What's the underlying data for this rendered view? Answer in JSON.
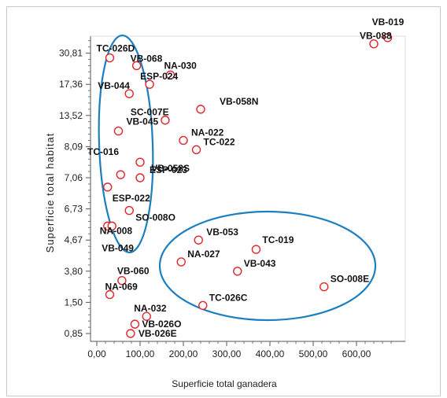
{
  "chart_data": {
    "type": "scatter",
    "title": "",
    "xlabel": "Superficie total ganadera",
    "ylabel": "Superficie total habitat",
    "xlim": [
      0,
      660
    ],
    "x_ticks": [
      "0,00",
      "100,00",
      "200,00",
      "300,00",
      "400,00",
      "500,00",
      "600,00"
    ],
    "x_tick_values": [
      0,
      100,
      200,
      300,
      400,
      500,
      600
    ],
    "y_scale": "ordinal-rank",
    "y_ticks": [
      "0,85",
      "1,50",
      "3,80",
      "4,67",
      "6,73",
      "7,06",
      "8,09",
      "13,52",
      "17,36",
      "30,81"
    ],
    "y_tick_ranks": [
      0,
      1,
      2,
      3,
      4,
      5,
      6,
      7,
      8,
      9
    ],
    "grid": false,
    "marker": "open-circle",
    "marker_color": "#e0262a",
    "ellipse_color": "#1a7fc1",
    "points": [
      {
        "label": "VB-019",
        "x": 672,
        "y_rank": 9.5
      },
      {
        "label": "VB-088",
        "x": 640,
        "y_rank": 9.3
      },
      {
        "label": "TC-026D",
        "x": 30,
        "y_rank": 8.85
      },
      {
        "label": "VB-068",
        "x": 92,
        "y_rank": 8.6
      },
      {
        "label": "NA-030",
        "x": 170,
        "y_rank": 8.3
      },
      {
        "label": "ESP-024",
        "x": 122,
        "y_rank": 8.0
      },
      {
        "label": "VB-044",
        "x": 75,
        "y_rank": 7.7
      },
      {
        "label": "SC-007E",
        "x": 158,
        "y_rank": 6.85
      },
      {
        "label": "VB-058N",
        "x": 240,
        "y_rank": 7.2
      },
      {
        "label": "VB-045",
        "x": 50,
        "y_rank": 6.5
      },
      {
        "label": "NA-022",
        "x": 200,
        "y_rank": 6.2
      },
      {
        "label": "TC-022",
        "x": 230,
        "y_rank": 5.9
      },
      {
        "label": "TC-016",
        "x": 100,
        "y_rank": 5.5
      },
      {
        "label": "VB-058S",
        "x": 55,
        "y_rank": 5.1
      },
      {
        "label": "ESP-023",
        "x": 100,
        "y_rank": 5.0
      },
      {
        "label": "ESP-022",
        "x": 25,
        "y_rank": 4.7
      },
      {
        "label": "SO-008O",
        "x": 75,
        "y_rank": 3.95
      },
      {
        "label": "NA-008",
        "x": 25,
        "y_rank": 3.45
      },
      {
        "label": "VB-049",
        "x": 35,
        "y_rank": 3.45
      },
      {
        "label": "VB-053",
        "x": 235,
        "y_rank": 3.0
      },
      {
        "label": "TC-019",
        "x": 368,
        "y_rank": 2.7
      },
      {
        "label": "NA-027",
        "x": 195,
        "y_rank": 2.3
      },
      {
        "label": "VB-043",
        "x": 325,
        "y_rank": 2.0
      },
      {
        "label": "VB-060",
        "x": 58,
        "y_rank": 1.7
      },
      {
        "label": "SO-008E",
        "x": 525,
        "y_rank": 1.5
      },
      {
        "label": "NA-069",
        "x": 30,
        "y_rank": 1.25
      },
      {
        "label": "TC-026C",
        "x": 245,
        "y_rank": 0.9
      },
      {
        "label": "NA-032",
        "x": 115,
        "y_rank": 0.55
      },
      {
        "label": "VB-026O",
        "x": 88,
        "y_rank": 0.3
      },
      {
        "label": "VB-026E",
        "x": 78,
        "y_rank": 0.0
      }
    ]
  }
}
